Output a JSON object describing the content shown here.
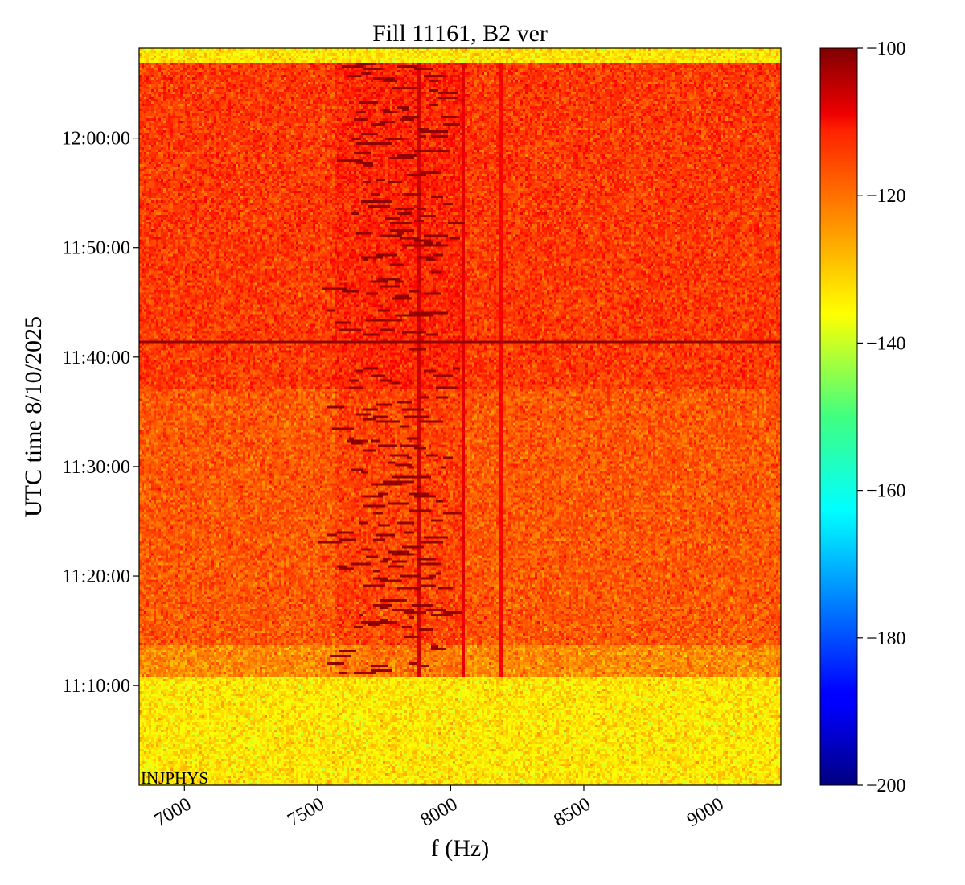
{
  "chart_data": {
    "type": "heatmap",
    "title": "Fill 11161, B2 ver",
    "xlabel": "f (Hz)",
    "ylabel": "UTC time 8/10/2025",
    "xlim": [
      6830,
      9240
    ],
    "ylim_minutes": [
      660.9,
      728.2
    ],
    "x_ticks": [
      {
        "value": 7000,
        "label": "7000"
      },
      {
        "value": 7500,
        "label": "7500"
      },
      {
        "value": 8000,
        "label": "8000"
      },
      {
        "value": 8500,
        "label": "8500"
      },
      {
        "value": 9000,
        "label": "9000"
      }
    ],
    "y_ticks": [
      {
        "value": 670,
        "label": "11:10:00"
      },
      {
        "value": 680,
        "label": "11:20:00"
      },
      {
        "value": 690,
        "label": "11:30:00"
      },
      {
        "value": 700,
        "label": "11:40:00"
      },
      {
        "value": 710,
        "label": "11:50:00"
      },
      {
        "value": 720,
        "label": "12:00:00"
      }
    ],
    "colorbar": {
      "colormap": "jet",
      "range": [
        -200,
        -100
      ],
      "ticks": [
        {
          "value": -100,
          "label": "−100"
        },
        {
          "value": -120,
          "label": "−120"
        },
        {
          "value": -140,
          "label": "−140"
        },
        {
          "value": -160,
          "label": "−160"
        },
        {
          "value": -180,
          "label": "−180"
        },
        {
          "value": -200,
          "label": "−200"
        }
      ]
    },
    "annotation": "INJPHYS",
    "regions": [
      {
        "t_start": 660.9,
        "t_end": 670.9,
        "level_db": -135
      },
      {
        "t_start": 670.9,
        "t_end": 673.6,
        "level_db": -126
      },
      {
        "t_start": 673.6,
        "t_end": 697.0,
        "level_db": -121
      },
      {
        "t_start": 697.0,
        "t_end": 726.9,
        "level_db": -118
      },
      {
        "t_start": 726.9,
        "t_end": 728.2,
        "level_db": -135
      }
    ],
    "features": [
      {
        "type": "oscillating_line_band",
        "f_center_hz": 7800,
        "f_width_hz": 400,
        "t_start": 670.9,
        "t_end": 726.9,
        "level_db": -102
      },
      {
        "type": "vertical_line",
        "f_hz": 7880,
        "level_db": -108
      },
      {
        "type": "vertical_line",
        "f_hz": 8050,
        "level_db": -110
      },
      {
        "type": "vertical_line",
        "f_hz": 8190,
        "level_db": -112
      },
      {
        "type": "horizontal_line",
        "t": 701.3,
        "level_db": -102
      }
    ]
  }
}
